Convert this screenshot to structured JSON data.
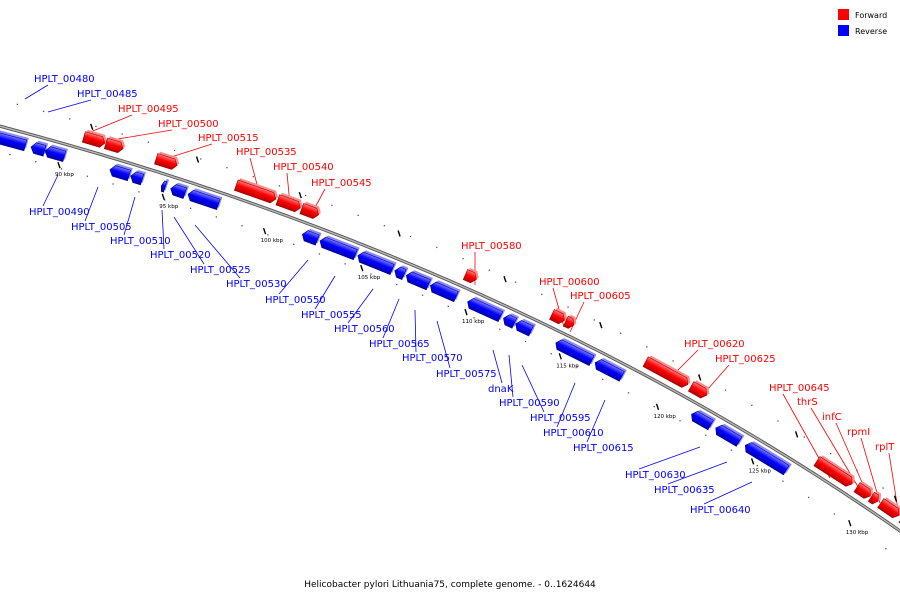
{
  "caption": "Helicobacter pylori Lithuania75, complete genome. - 0..1624644",
  "legend": [
    {
      "label": "Forward",
      "color": "#ff0000"
    },
    {
      "label": "Reverse",
      "color": "#0000ff"
    }
  ],
  "colors": {
    "forward": "#ff0000",
    "reverse": "#0000ff",
    "backbone": "#777777"
  },
  "ticks": [
    {
      "label": "90 kbp",
      "kbp": 90
    },
    {
      "label": "95 kbp",
      "kbp": 95
    },
    {
      "label": "100 kbp",
      "kbp": 100
    },
    {
      "label": "105 kbp",
      "kbp": 105
    },
    {
      "label": "110 kbp",
      "kbp": 110
    },
    {
      "label": "115 kbp",
      "kbp": 115
    },
    {
      "label": "120 kbp",
      "kbp": 120
    },
    {
      "label": "125 kbp",
      "kbp": 125
    },
    {
      "label": "130 kbp",
      "kbp": 130
    }
  ],
  "genes": [
    {
      "name": "HPLT_00480",
      "strand": "reverse"
    },
    {
      "name": "HPLT_00485",
      "strand": "reverse"
    },
    {
      "name": "HPLT_00490",
      "strand": "reverse"
    },
    {
      "name": "HPLT_00495",
      "strand": "forward"
    },
    {
      "name": "HPLT_00500",
      "strand": "forward"
    },
    {
      "name": "HPLT_00505",
      "strand": "reverse"
    },
    {
      "name": "HPLT_00510",
      "strand": "reverse"
    },
    {
      "name": "HPLT_00515",
      "strand": "forward"
    },
    {
      "name": "HPLT_00520",
      "strand": "reverse"
    },
    {
      "name": "HPLT_00525",
      "strand": "reverse"
    },
    {
      "name": "HPLT_00530",
      "strand": "reverse"
    },
    {
      "name": "HPLT_00535",
      "strand": "forward"
    },
    {
      "name": "HPLT_00540",
      "strand": "forward"
    },
    {
      "name": "HPLT_00545",
      "strand": "forward"
    },
    {
      "name": "HPLT_00550",
      "strand": "reverse"
    },
    {
      "name": "HPLT_00555",
      "strand": "reverse"
    },
    {
      "name": "HPLT_00560",
      "strand": "reverse"
    },
    {
      "name": "HPLT_00565",
      "strand": "reverse"
    },
    {
      "name": "HPLT_00570",
      "strand": "reverse"
    },
    {
      "name": "HPLT_00575",
      "strand": "reverse"
    },
    {
      "name": "HPLT_00580",
      "strand": "forward"
    },
    {
      "name": "dnaK",
      "strand": "reverse"
    },
    {
      "name": "HPLT_00590",
      "strand": "reverse"
    },
    {
      "name": "HPLT_00595",
      "strand": "reverse"
    },
    {
      "name": "HPLT_00600",
      "strand": "forward"
    },
    {
      "name": "HPLT_00605",
      "strand": "forward"
    },
    {
      "name": "HPLT_00610",
      "strand": "reverse"
    },
    {
      "name": "HPLT_00615",
      "strand": "reverse"
    },
    {
      "name": "HPLT_00620",
      "strand": "forward"
    },
    {
      "name": "HPLT_00625",
      "strand": "forward"
    },
    {
      "name": "HPLT_00630",
      "strand": "reverse"
    },
    {
      "name": "HPLT_00635",
      "strand": "reverse"
    },
    {
      "name": "HPLT_00640",
      "strand": "reverse"
    },
    {
      "name": "HPLT_00645",
      "strand": "forward"
    },
    {
      "name": "thrS",
      "strand": "forward"
    },
    {
      "name": "infC",
      "strand": "forward"
    },
    {
      "name": "rpmI",
      "strand": "forward"
    },
    {
      "name": "rplT",
      "strand": "forward"
    }
  ]
}
